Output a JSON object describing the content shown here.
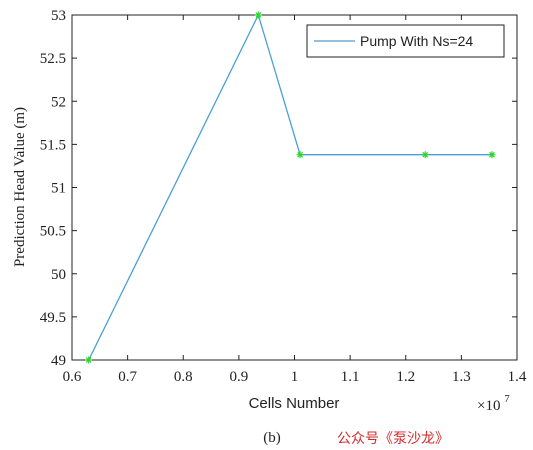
{
  "chart_data": {
    "type": "line",
    "x": [
      0.63,
      0.935,
      1.01,
      1.235,
      1.355
    ],
    "series": [
      {
        "name": "Pump With Ns=24",
        "values": [
          49.0,
          53.0,
          51.38,
          51.38,
          51.38
        ],
        "color": "#4a9fd6",
        "marker_color": "#2bd62b"
      }
    ],
    "xlabel": "Cells Number",
    "ylabel": "Prediction Head Value (m)",
    "x_multiplier_text": "×10",
    "x_multiplier_exp": "7",
    "xlim": [
      0.6,
      1.4
    ],
    "ylim": [
      49,
      53
    ],
    "xticks": [
      0.6,
      0.7,
      0.8,
      0.9,
      1.0,
      1.1,
      1.2,
      1.3,
      1.4
    ],
    "xtick_labels": [
      "0.6",
      "0.7",
      "0.8",
      "0.9",
      "1",
      "1.1",
      "1.2",
      "1.3",
      "1.4"
    ],
    "yticks": [
      49,
      49.5,
      50,
      50.5,
      51,
      51.5,
      52,
      52.5,
      53
    ],
    "ytick_labels": [
      "49",
      "49.5",
      "50",
      "50.5",
      "51",
      "51.5",
      "52",
      "52.5",
      "53"
    ],
    "grid": false,
    "legend_position": "top-right"
  },
  "caption": "(b)",
  "watermark": "公众号《泵沙龙》"
}
